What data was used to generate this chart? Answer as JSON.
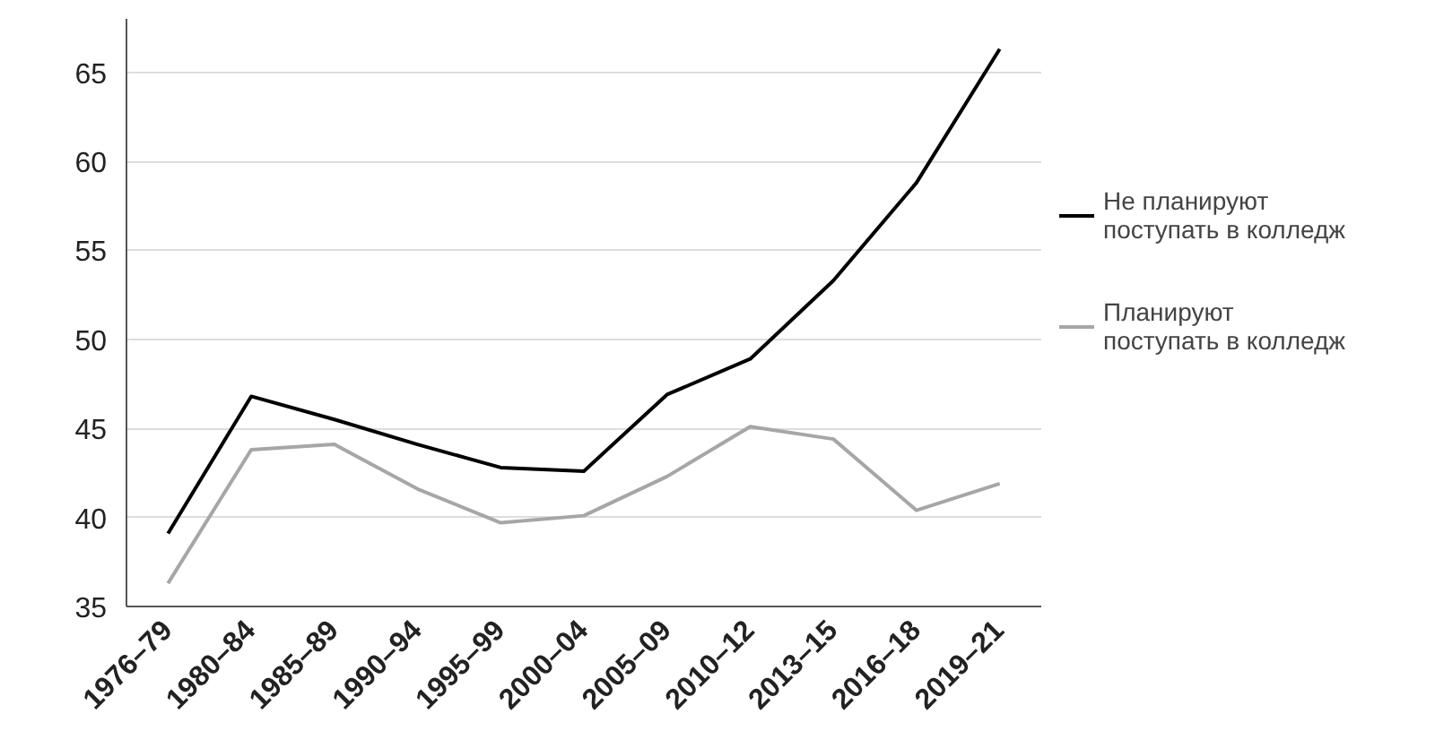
{
  "chart_data": {
    "type": "line",
    "categories": [
      "1976–79",
      "1980–84",
      "1985–89",
      "1990–94",
      "1995–99",
      "2000–04",
      "2005–09",
      "2010–12",
      "2013–15",
      "2016–18",
      "2019–21"
    ],
    "series": [
      {
        "name": "Не планируют\nпоступать в колледж",
        "color": "#000000",
        "values": [
          39.1,
          46.8,
          45.5,
          44.1,
          42.8,
          42.6,
          46.9,
          48.9,
          53.3,
          58.8,
          66.3
        ]
      },
      {
        "name": "Планируют\nпоступать в колледж",
        "color": "#a6a6a6",
        "values": [
          36.3,
          43.8,
          44.1,
          41.6,
          39.7,
          40.1,
          42.3,
          45.1,
          44.4,
          40.4,
          41.9
        ]
      }
    ],
    "ylim": [
      35,
      68
    ],
    "yticks": [
      35,
      40,
      45,
      50,
      55,
      60,
      65
    ],
    "grid": "y",
    "legend": "right",
    "marker": "none",
    "line_style": "solid"
  }
}
